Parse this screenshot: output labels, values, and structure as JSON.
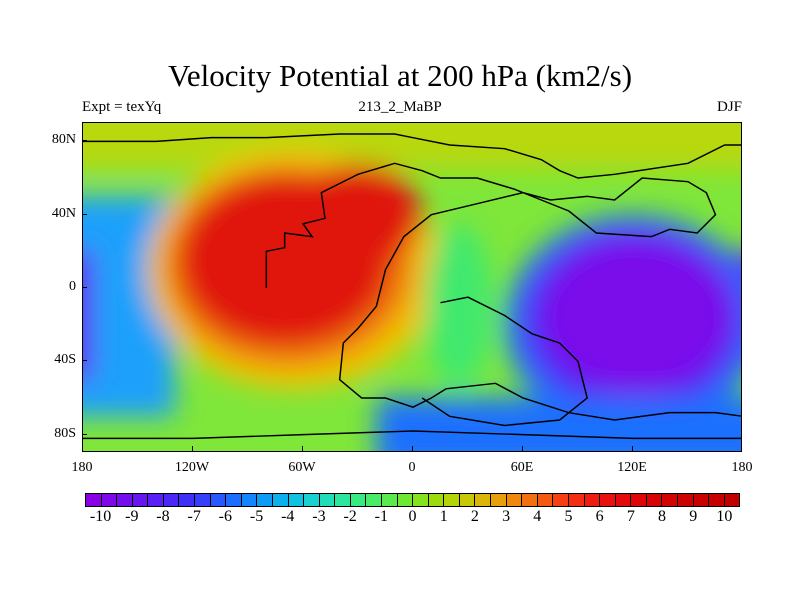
{
  "header": {
    "title": "Velocity Potential at 200 hPa (km2/s)",
    "left": "Expt = texYq",
    "center": "213_2_MaBP",
    "right": "DJF"
  },
  "map": {
    "projection": "cylindrical equidistant",
    "lon_range": [
      -180,
      180
    ],
    "lat_range": [
      -90,
      90
    ],
    "y_ticks": [
      {
        "label": "80N",
        "lat": 80
      },
      {
        "label": "40N",
        "lat": 40
      },
      {
        "label": "0",
        "lat": 0
      },
      {
        "label": "40S",
        "lat": -40
      },
      {
        "label": "80S",
        "lat": -80
      }
    ],
    "x_ticks": [
      {
        "label": "180",
        "lon": -180
      },
      {
        "label": "120W",
        "lon": -120
      },
      {
        "label": "60W",
        "lon": -60
      },
      {
        "label": "0",
        "lon": 0
      },
      {
        "label": "60E",
        "lon": 60
      },
      {
        "label": "120E",
        "lon": 120
      },
      {
        "label": "180",
        "lon": 180
      }
    ],
    "field": "velocity potential, km2/s",
    "features": [
      {
        "name": "positive maximum",
        "lon": -75,
        "lat": 15,
        "value": 10
      },
      {
        "name": "negative minimum",
        "lon": 125,
        "lat": 5,
        "value": -10
      }
    ],
    "outline": "coastline (paleogeography, black contour)"
  },
  "colorbar": {
    "min": -10.5,
    "max": 10.5,
    "step": 0.5,
    "labels": [
      "-10",
      "-9",
      "-8",
      "-7",
      "-6",
      "-5",
      "-4",
      "-3",
      "-2",
      "-1",
      "0",
      "1",
      "2",
      "3",
      "4",
      "5",
      "6",
      "7",
      "8",
      "9",
      "10"
    ],
    "colors": [
      "#8a00e6",
      "#7f08e8",
      "#720fec",
      "#6617f0",
      "#5a1ff4",
      "#4d27f7",
      "#402ff9",
      "#3440fb",
      "#2858fd",
      "#1c6ffe",
      "#1386fe",
      "#0c9cf6",
      "#0cb0ed",
      "#10c2e2",
      "#17d2cf",
      "#21deb8",
      "#2ae69e",
      "#37ea82",
      "#47ec67",
      "#59eb4c",
      "#6ee833",
      "#85e21d",
      "#9cdc0f",
      "#b3d409",
      "#c8c808",
      "#dab609",
      "#e7a00b",
      "#ee890d",
      "#f3700f",
      "#f55811",
      "#f64012",
      "#f42c13",
      "#ef1c12",
      "#ea1010",
      "#e40a0c",
      "#de0608",
      "#d80305",
      "#d30203",
      "#ce0102",
      "#ca0101",
      "#c60000",
      "#c20000"
    ]
  }
}
